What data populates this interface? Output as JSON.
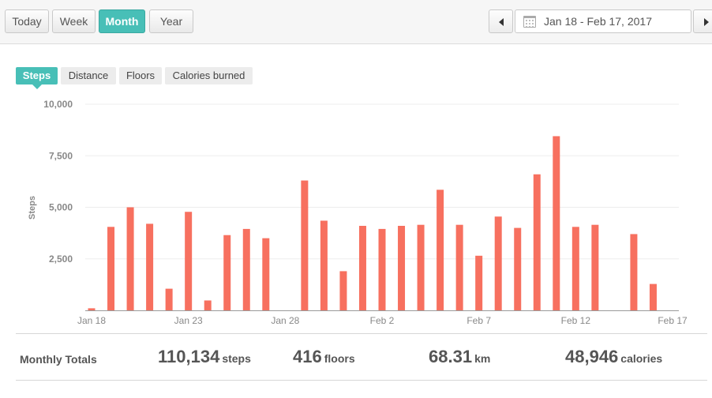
{
  "range_buttons": [
    {
      "label": "Today",
      "active": false
    },
    {
      "label": "Week",
      "active": false
    },
    {
      "label": "Month",
      "active": true
    },
    {
      "label": "Year",
      "active": false
    }
  ],
  "date_range": "Jan 18 - Feb 17, 2017",
  "metric_tabs": [
    {
      "label": "Steps",
      "active": true
    },
    {
      "label": "Distance",
      "active": false
    },
    {
      "label": "Floors",
      "active": false
    },
    {
      "label": "Calories burned",
      "active": false
    }
  ],
  "colors": {
    "accent": "#48bfb7",
    "bar": "#f7705f"
  },
  "chart_data": {
    "type": "bar",
    "ylabel": "Steps",
    "ylim": [
      0,
      10000
    ],
    "y_ticks": [
      2500,
      5000,
      7500,
      10000
    ],
    "y_tick_labels": [
      "2,500",
      "5,000",
      "7,500",
      "10,000"
    ],
    "x_tick_labels": [
      {
        "label": "Jan 18",
        "index": 0
      },
      {
        "label": "Jan 23",
        "index": 5
      },
      {
        "label": "Jan 28",
        "index": 10
      },
      {
        "label": "Feb 2",
        "index": 15
      },
      {
        "label": "Feb 7",
        "index": 20
      },
      {
        "label": "Feb 12",
        "index": 25
      },
      {
        "label": "Feb 17",
        "index": 30
      }
    ],
    "categories": [
      "Jan 18",
      "Jan 19",
      "Jan 20",
      "Jan 21",
      "Jan 22",
      "Jan 23",
      "Jan 24",
      "Jan 25",
      "Jan 26",
      "Jan 27",
      "Jan 28",
      "Jan 29",
      "Jan 30",
      "Jan 31",
      "Feb 1",
      "Feb 2",
      "Feb 3",
      "Feb 4",
      "Feb 5",
      "Feb 6",
      "Feb 7",
      "Feb 8",
      "Feb 9",
      "Feb 10",
      "Feb 11",
      "Feb 12",
      "Feb 13",
      "Feb 14",
      "Feb 15",
      "Feb 16",
      "Feb 17"
    ],
    "values": [
      100,
      4050,
      5000,
      4200,
      1050,
      4780,
      480,
      3650,
      3950,
      3500,
      0,
      6300,
      4350,
      1900,
      4100,
      3950,
      4100,
      4150,
      5850,
      4150,
      2650,
      4550,
      4000,
      6600,
      8450,
      4050,
      4150,
      0,
      3700,
      1280,
      0
    ],
    "grid": true,
    "legend": "none"
  },
  "totals": {
    "label": "Monthly Totals",
    "items": [
      {
        "value": "110,134",
        "unit": "steps"
      },
      {
        "value": "416",
        "unit": "floors"
      },
      {
        "value": "68.31",
        "unit": "km"
      },
      {
        "value": "48,946",
        "unit": "calories"
      }
    ]
  }
}
